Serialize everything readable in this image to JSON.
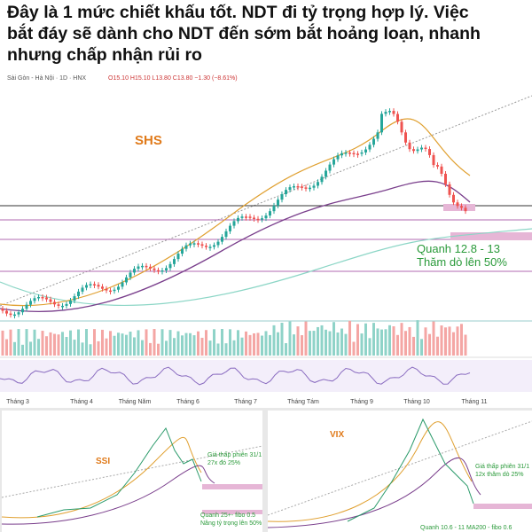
{
  "caption": {
    "lines": [
      "Đây là 1 mức chiết khấu tốt. NDT đi tỷ trọng hợp lý. Việc",
      "bắt đáy sẽ dành cho NDT đến sớm bắt hoảng loạn, nhanh",
      "nhưng chấp nhận rủi ro"
    ]
  },
  "main_chart": {
    "header": "Sài Gòn - Hà Nội · 1D · HNX",
    "ohlc": "O15.10 H15.10 L13.80 C13.80 −1.30 (−8.61%)",
    "symbol": "SHS",
    "annotation": [
      "Quanh 12.8 - 13",
      "Thăm dò lên 50%"
    ],
    "months": [
      "Tháng 3",
      "Tháng 4",
      "Tháng Năm",
      "Tháng 6",
      "Tháng 7",
      "Tháng Tám",
      "Tháng 9",
      "Tháng 10",
      "Tháng 11"
    ]
  },
  "small_charts": [
    {
      "symbol": "SSI",
      "notes": [
        "Giá thấp phiên 31/1",
        "27x đó 25%",
        "Quanh 25+- fibo 0.5",
        "Nâng tỷ trọng lên 50%"
      ]
    },
    {
      "symbol": "VIX",
      "notes": [
        "Giá thấp phiên 31/1",
        "12x thăm dò 25%",
        "Quanh 10.6 - 11 MA200 - fibo 0.6"
      ]
    }
  ]
}
